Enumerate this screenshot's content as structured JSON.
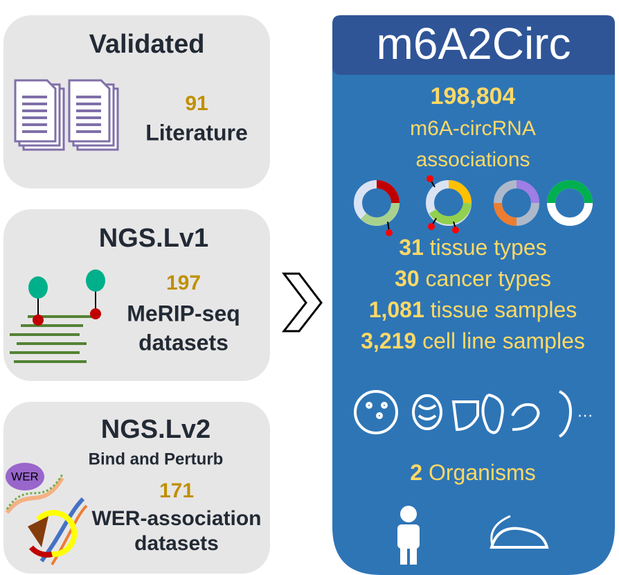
{
  "cards": [
    {
      "title": "Validated",
      "count": "91",
      "lines": [
        "Literature"
      ]
    },
    {
      "title": "NGS.Lv1",
      "count": "197",
      "lines": [
        "MeRIP-seq",
        "datasets"
      ]
    },
    {
      "title": "NGS.Lv2",
      "subtitle": "Bind and Perturb",
      "badge": "WER",
      "count": "171",
      "lines": [
        "WER-association",
        "datasets"
      ]
    }
  ],
  "panel": {
    "title": "m6A2Circ",
    "total": "198,804",
    "total_lines": [
      "m6A-circRNA",
      "associations"
    ],
    "stats": [
      {
        "number": "31",
        "text": "tissue types"
      },
      {
        "number": "30",
        "text": "cancer types"
      },
      {
        "number": "1,081",
        "text": "tissue samples"
      },
      {
        "number": "3,219",
        "text": "cell line samples"
      }
    ],
    "more": "…",
    "organisms": {
      "number": "2",
      "text": "Organisms"
    }
  }
}
